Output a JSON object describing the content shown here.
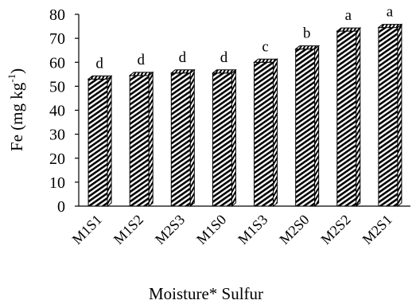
{
  "chart_data": {
    "type": "bar",
    "title": "",
    "xlabel": "Moisture* Sulfur",
    "ylabel_main": "Fe (mg kg",
    "ylabel_sup": "-1",
    "ylabel_close": ")",
    "ylim": [
      0,
      80
    ],
    "yticks": [
      "0",
      "10",
      "20",
      "30",
      "40",
      "50",
      "60",
      "70",
      "80"
    ],
    "categories": [
      "M1S1",
      "M1S2",
      "M2S3",
      "M1S0",
      "M1S3",
      "M2S0",
      "M2S2",
      "M2S1"
    ],
    "values": [
      53,
      54.5,
      55.5,
      55.5,
      60,
      65.5,
      73,
      74.5
    ],
    "significance_letters": [
      "d",
      "d",
      "d",
      "d",
      "c",
      "b",
      "a",
      "a"
    ],
    "grid": false,
    "bar_style": "3d-hatched",
    "colors": {
      "bar_stripe": "#000000",
      "bar_fill": "#ffffff",
      "axis": "#000000"
    }
  }
}
